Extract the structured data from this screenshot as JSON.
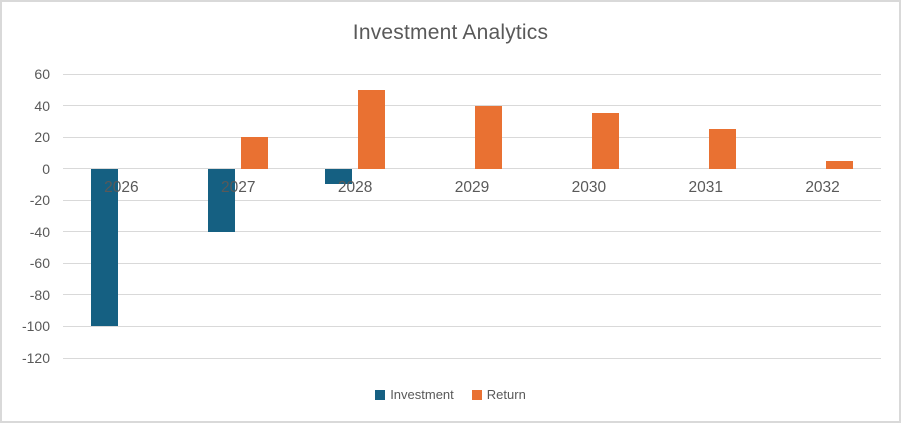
{
  "title": "Investment Analytics",
  "colors": {
    "investment": "#156082",
    "return": "#E97132",
    "text": "#595959",
    "gridline": "#D9D9D9",
    "chart_border": "#D9D9D9",
    "background": "#FFFFFF"
  },
  "legend": {
    "items": [
      {
        "label": "Investment",
        "color": "#156082"
      },
      {
        "label": "Return",
        "color": "#E97132"
      }
    ],
    "position": "bottom"
  },
  "chart_data": {
    "type": "bar",
    "title": "Investment Analytics",
    "categories": [
      "2026",
      "2027",
      "2028",
      "2029",
      "2030",
      "2031",
      "2032"
    ],
    "series": [
      {
        "name": "Investment",
        "color": "#156082",
        "values": [
          -100,
          -40,
          -10,
          0,
          0,
          0,
          0
        ]
      },
      {
        "name": "Return",
        "color": "#E97132",
        "values": [
          0,
          20,
          50,
          40,
          35,
          25,
          5
        ]
      }
    ],
    "xlabel": "",
    "ylabel": "",
    "ylim": [
      -120,
      60
    ],
    "ytick_step": 20,
    "yticks": [
      60,
      40,
      20,
      0,
      -20,
      -40,
      -60,
      -80,
      -100,
      -120
    ],
    "grid": true,
    "legend_position": "bottom"
  }
}
